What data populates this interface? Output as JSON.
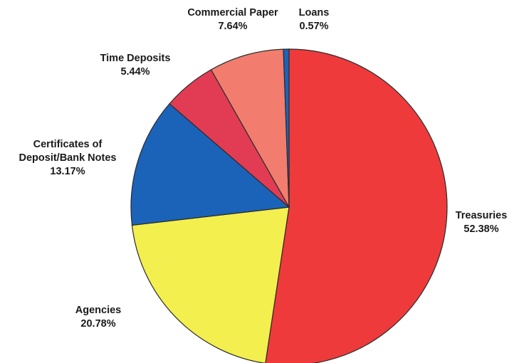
{
  "chart_data": {
    "type": "pie",
    "slices": [
      {
        "label": "Treasuries",
        "value": 52.38,
        "value_label": "52.38%",
        "color": "#ee3a3b"
      },
      {
        "label": "Agencies",
        "value": 20.78,
        "value_label": "20.78%",
        "color": "#f2ef4f"
      },
      {
        "label": "Certificates of Deposit/Bank Notes",
        "label_lines": [
          "Certificates of",
          "Deposit/Bank Notes"
        ],
        "value": 13.17,
        "value_label": "13.17%",
        "color": "#1b63b8"
      },
      {
        "label": "Time Deposits",
        "value": 5.44,
        "value_label": "5.44%",
        "color": "#e23c54"
      },
      {
        "label": "Commercial Paper",
        "value": 7.64,
        "value_label": "7.64%",
        "color": "#f27d6e"
      },
      {
        "label": "Loans",
        "value": 0.57,
        "value_label": "0.57%",
        "color": "#1b63b8"
      }
    ],
    "start_angle_deg": 0,
    "direction": "clockwise",
    "legend": "none"
  }
}
